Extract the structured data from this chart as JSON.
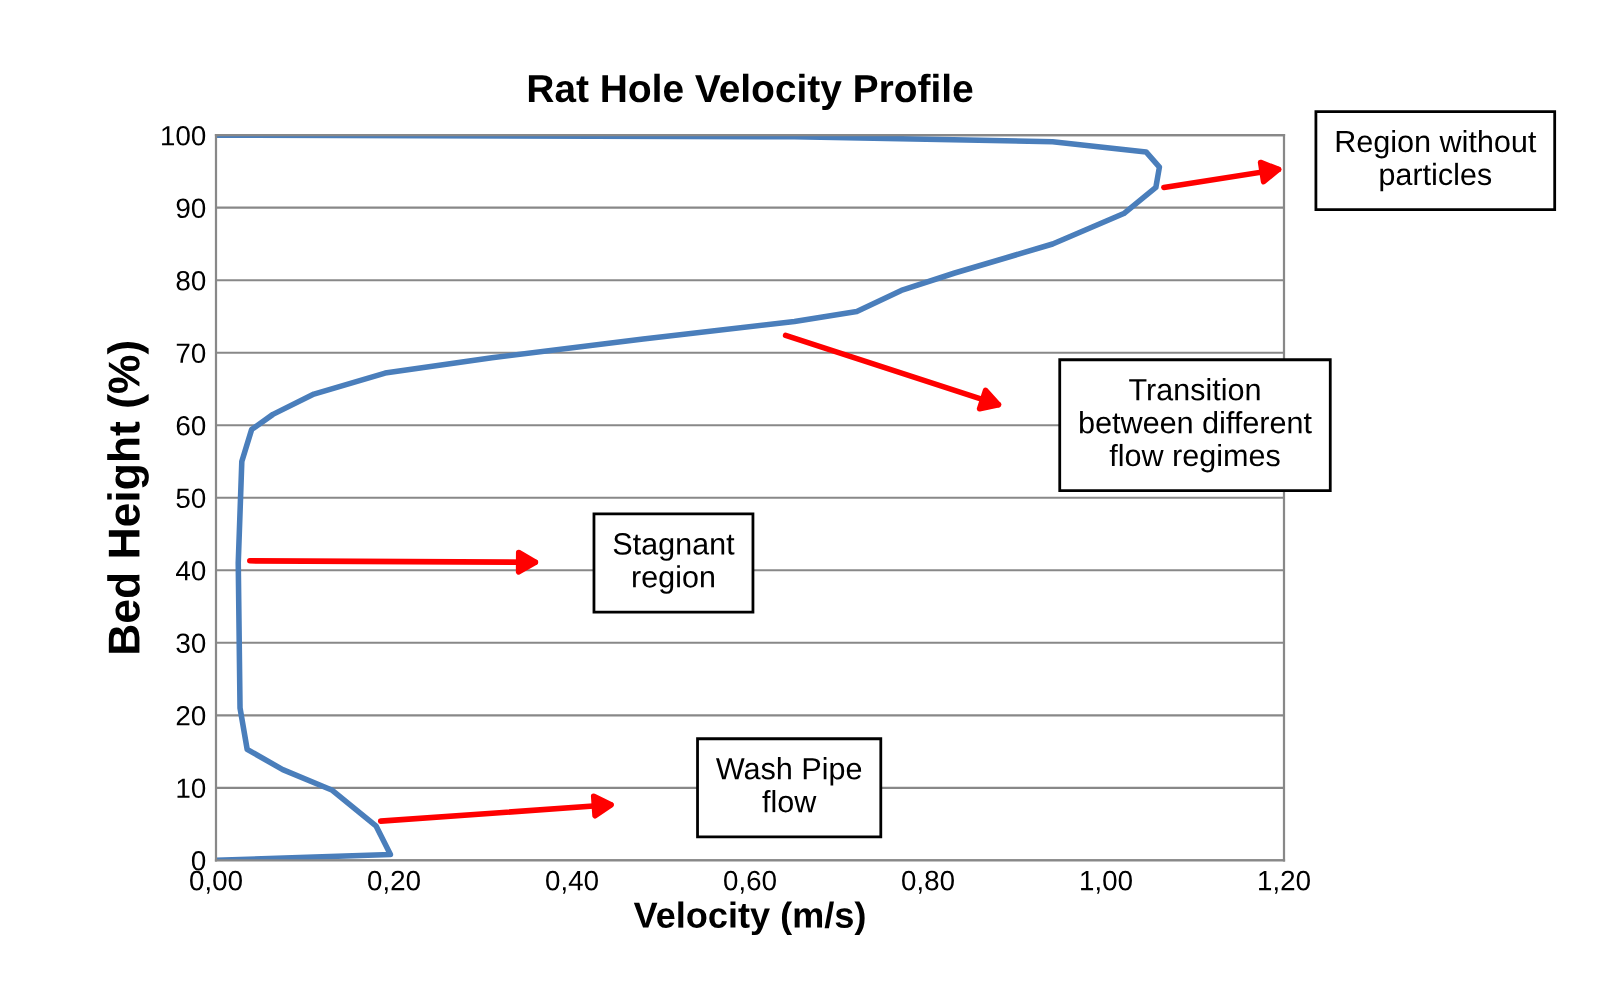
{
  "chart_data": {
    "type": "line",
    "title": "Rat Hole Velocity Profile",
    "xlabel": "Velocity (m/s)",
    "ylabel": "Bed Height (%)",
    "series": [
      {
        "color": "#4a7ebb",
        "x": [
          0,
          0.196,
          0.18,
          0.13,
          0.075,
          0.035,
          0.027,
          0.025,
          0.029,
          0.04,
          0.064,
          0.11,
          0.19,
          0.31,
          0.48,
          0.65,
          0.72,
          0.77,
          0.83,
          0.94,
          1.02,
          1.056,
          1.06,
          1.045,
          0.94,
          0.65,
          0
        ],
        "values": [
          0,
          0.8,
          4.7,
          9.7,
          12.5,
          15.3,
          21,
          41,
          55,
          59.4,
          61.5,
          64.3,
          67.2,
          69.3,
          71.9,
          74.3,
          75.7,
          78.6,
          81,
          85,
          89.2,
          92.8,
          95.6,
          97.7,
          99.1,
          99.8,
          100
        ]
      }
    ],
    "xlim": [
      0,
      1.2
    ],
    "xticks": [
      {
        "value": 0,
        "label": "0,00"
      },
      {
        "value": 0.2,
        "label": "0,20"
      },
      {
        "value": 0.4,
        "label": "0,40"
      },
      {
        "value": 0.6,
        "label": "0,60"
      },
      {
        "value": 0.8,
        "label": "0,80"
      },
      {
        "value": 1.0,
        "label": "1,00"
      },
      {
        "value": 1.2,
        "label": "1,20"
      }
    ],
    "ylim": [
      0,
      100
    ],
    "yticks": [
      0,
      10,
      20,
      30,
      40,
      50,
      60,
      70,
      80,
      90,
      100
    ],
    "grid": "y",
    "legend": false,
    "marker": "none",
    "line_style": "solid",
    "annotations": [
      "Region without\nparticles",
      "Transition\nbetween different\nflow regimes",
      "Stagnant\nregion",
      "Wash Pipe\nflow"
    ]
  }
}
